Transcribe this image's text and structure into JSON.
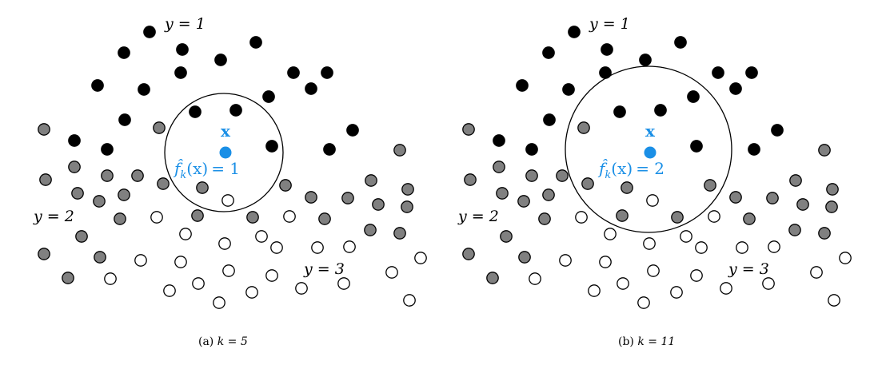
{
  "panels": [
    {
      "id": "a",
      "caption_prefix": "(a) ",
      "k_label": "k = 5",
      "prediction": "= 1",
      "query_label": "x",
      "class_labels": {
        "y1": "y = 1",
        "y2": "y = 2",
        "y3": "y = 3"
      }
    },
    {
      "id": "b",
      "caption_prefix": "(b) ",
      "k_label": "k = 11",
      "prediction": "= 2",
      "query_label": "x",
      "class_labels": {
        "y1": "y = 1",
        "y2": "y = 2",
        "y3": "y = 3"
      }
    }
  ],
  "prediction_func": "f̂",
  "prediction_sub": "k",
  "prediction_arg": "(x)",
  "colors": {
    "class_1": "#000000",
    "class_2": "#808080",
    "class_3": "#ffffff",
    "query": "#1a8fe6"
  }
}
